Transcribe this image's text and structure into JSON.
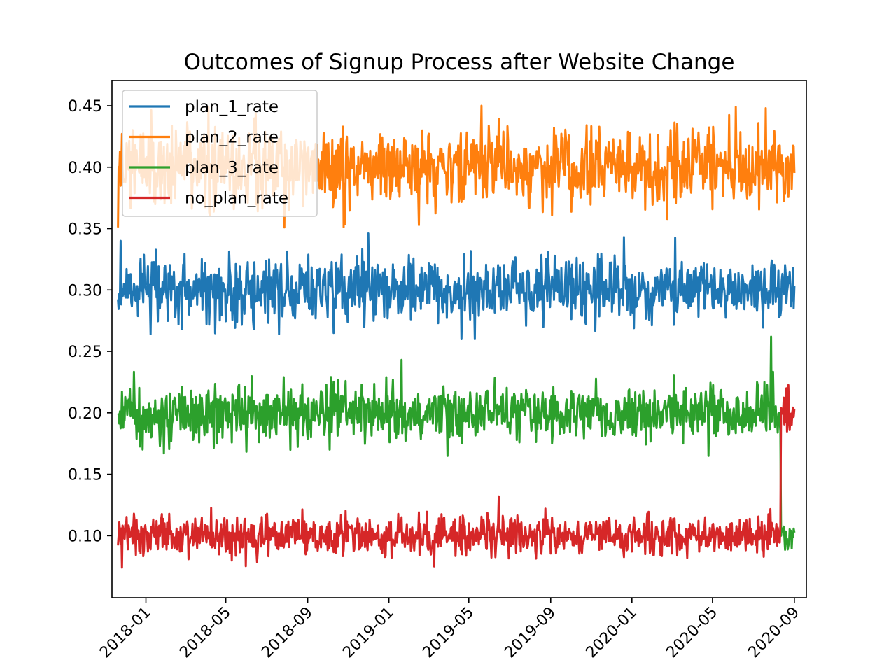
{
  "chart_data": {
    "type": "line",
    "title": "Outcomes of Signup Process after Website Change",
    "xlabel": "",
    "ylabel": "",
    "x_start": "2017-11-20",
    "x_end": "2020-09-01",
    "xlim": [
      "2017-11-11",
      "2020-09-19"
    ],
    "ylim": [
      0.0495,
      0.4705
    ],
    "change_date": "2020-08-12",
    "x_ticks": [
      {
        "date": "2018-01-01",
        "label": "2018-01"
      },
      {
        "date": "2018-05-01",
        "label": "2018-05"
      },
      {
        "date": "2018-09-01",
        "label": "2018-09"
      },
      {
        "date": "2019-01-01",
        "label": "2019-01"
      },
      {
        "date": "2019-05-01",
        "label": "2019-05"
      },
      {
        "date": "2019-09-01",
        "label": "2019-09"
      },
      {
        "date": "2020-01-01",
        "label": "2020-01"
      },
      {
        "date": "2020-05-01",
        "label": "2020-05"
      },
      {
        "date": "2020-09-01",
        "label": "2020-09"
      }
    ],
    "y_ticks": [
      {
        "value": 0.1,
        "label": "0.10"
      },
      {
        "value": 0.15,
        "label": "0.15"
      },
      {
        "value": 0.2,
        "label": "0.20"
      },
      {
        "value": 0.25,
        "label": "0.25"
      },
      {
        "value": 0.3,
        "label": "0.30"
      },
      {
        "value": 0.35,
        "label": "0.35"
      },
      {
        "value": 0.4,
        "label": "0.40"
      },
      {
        "value": 0.45,
        "label": "0.45"
      }
    ],
    "grid": false,
    "legend_position": "top-left",
    "series": [
      {
        "name": "plan_1_rate",
        "color": "#1f77b4",
        "mean": 0.3,
        "std": 0.013,
        "after_change_mean": 0.3,
        "after_change_std": 0.013,
        "min": 0.26,
        "max": 0.346,
        "extremes": [
          [
            "2017-11-24",
            0.34
          ],
          [
            "2018-12-01",
            0.346
          ],
          [
            "2019-12-20",
            0.343
          ],
          [
            "2019-04-20",
            0.26
          ],
          [
            "2019-05-10",
            0.26
          ],
          [
            "2018-01-08",
            0.264
          ]
        ]
      },
      {
        "name": "plan_2_rate",
        "color": "#ff7f0e",
        "mean": 0.4,
        "std": 0.015,
        "after_change_mean": 0.4,
        "after_change_std": 0.015,
        "min": 0.351,
        "max": 0.45,
        "extremes": [
          [
            "2019-05-20",
            0.45
          ],
          [
            "2020-06-05",
            0.449
          ],
          [
            "2020-07-20",
            0.448
          ],
          [
            "2017-11-20",
            0.351
          ],
          [
            "2018-07-28",
            0.351
          ],
          [
            "2019-02-15",
            0.353
          ]
        ]
      },
      {
        "name": "plan_3_rate",
        "color": "#2ca02c",
        "mean": 0.2,
        "std": 0.011,
        "after_change_mean": 0.1,
        "after_change_std": 0.007,
        "min": 0.165,
        "max": 0.262,
        "extremes": [
          [
            "2020-07-28",
            0.262
          ],
          [
            "2019-01-20",
            0.243
          ],
          [
            "2018-01-28",
            0.167
          ],
          [
            "2019-03-30",
            0.165
          ],
          [
            "2020-04-25",
            0.165
          ]
        ]
      },
      {
        "name": "no_plan_rate",
        "color": "#d62728",
        "mean": 0.1,
        "std": 0.008,
        "after_change_mean": 0.2,
        "after_change_std": 0.008,
        "min": 0.074,
        "max": 0.22,
        "extremes": [
          [
            "2019-06-15",
            0.132
          ],
          [
            "2017-11-26",
            0.074
          ],
          [
            "2019-03-10",
            0.075
          ],
          [
            "2020-08-20",
            0.22
          ]
        ]
      }
    ]
  }
}
